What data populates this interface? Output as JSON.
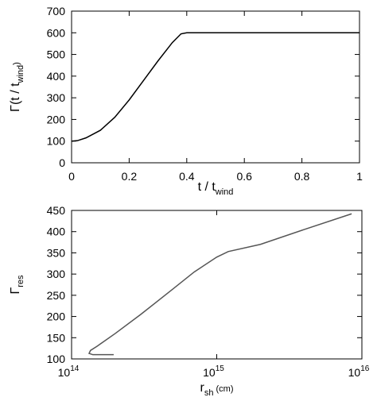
{
  "chart_data": [
    {
      "type": "line",
      "xlabel": [
        "t / t",
        "wind"
      ],
      "ylabel": [
        "Γ(t / t",
        "wind",
        ")"
      ],
      "x": [
        0,
        0.02,
        0.05,
        0.1,
        0.15,
        0.2,
        0.25,
        0.3,
        0.35,
        0.38,
        0.4,
        1
      ],
      "series": [
        {
          "color": "#000000",
          "values": [
            100,
            102,
            115,
            150,
            210,
            290,
            380,
            470,
            555,
            595,
            600,
            600
          ]
        }
      ],
      "xlim": [
        0,
        1
      ],
      "xticks": [
        0,
        0.2,
        0.4,
        0.6,
        0.8,
        1
      ],
      "ylim": [
        0,
        700
      ],
      "yticks": [
        0,
        100,
        200,
        300,
        400,
        500,
        600,
        700
      ]
    },
    {
      "type": "line",
      "log_x": true,
      "xlabel": [
        "r",
        "sh",
        " (cm)"
      ],
      "ylabel": [
        "Γ",
        "res"
      ],
      "x": [
        195000000000000.0,
        160000000000000.0,
        140000000000000.0,
        132000000000000.0,
        135000000000000.0,
        150000000000000.0,
        200000000000000.0,
        300000000000000.0,
        500000000000000.0,
        700000000000000.0,
        1000000000000000.0,
        1200000000000000.0,
        2000000000000000.0,
        4000000000000000.0,
        8500000000000000.0
      ],
      "series": [
        {
          "color": "#555555",
          "values": [
            110,
            110,
            110,
            113,
            120,
            130,
            160,
            205,
            265,
            305,
            340,
            353,
            370,
            405,
            442
          ]
        }
      ],
      "xlim": [
        100000000000000.0,
        1e+16
      ],
      "xticks": [
        {
          "value": 100000000000000.0,
          "label": "10",
          "exponent": "14"
        },
        {
          "value": 1000000000000000.0,
          "label": "10",
          "exponent": "15"
        },
        {
          "value": 1e+16,
          "label": "10",
          "exponent": "16"
        }
      ],
      "ylim": [
        100,
        450
      ],
      "yticks": [
        100,
        150,
        200,
        250,
        300,
        350,
        400,
        450
      ]
    }
  ]
}
